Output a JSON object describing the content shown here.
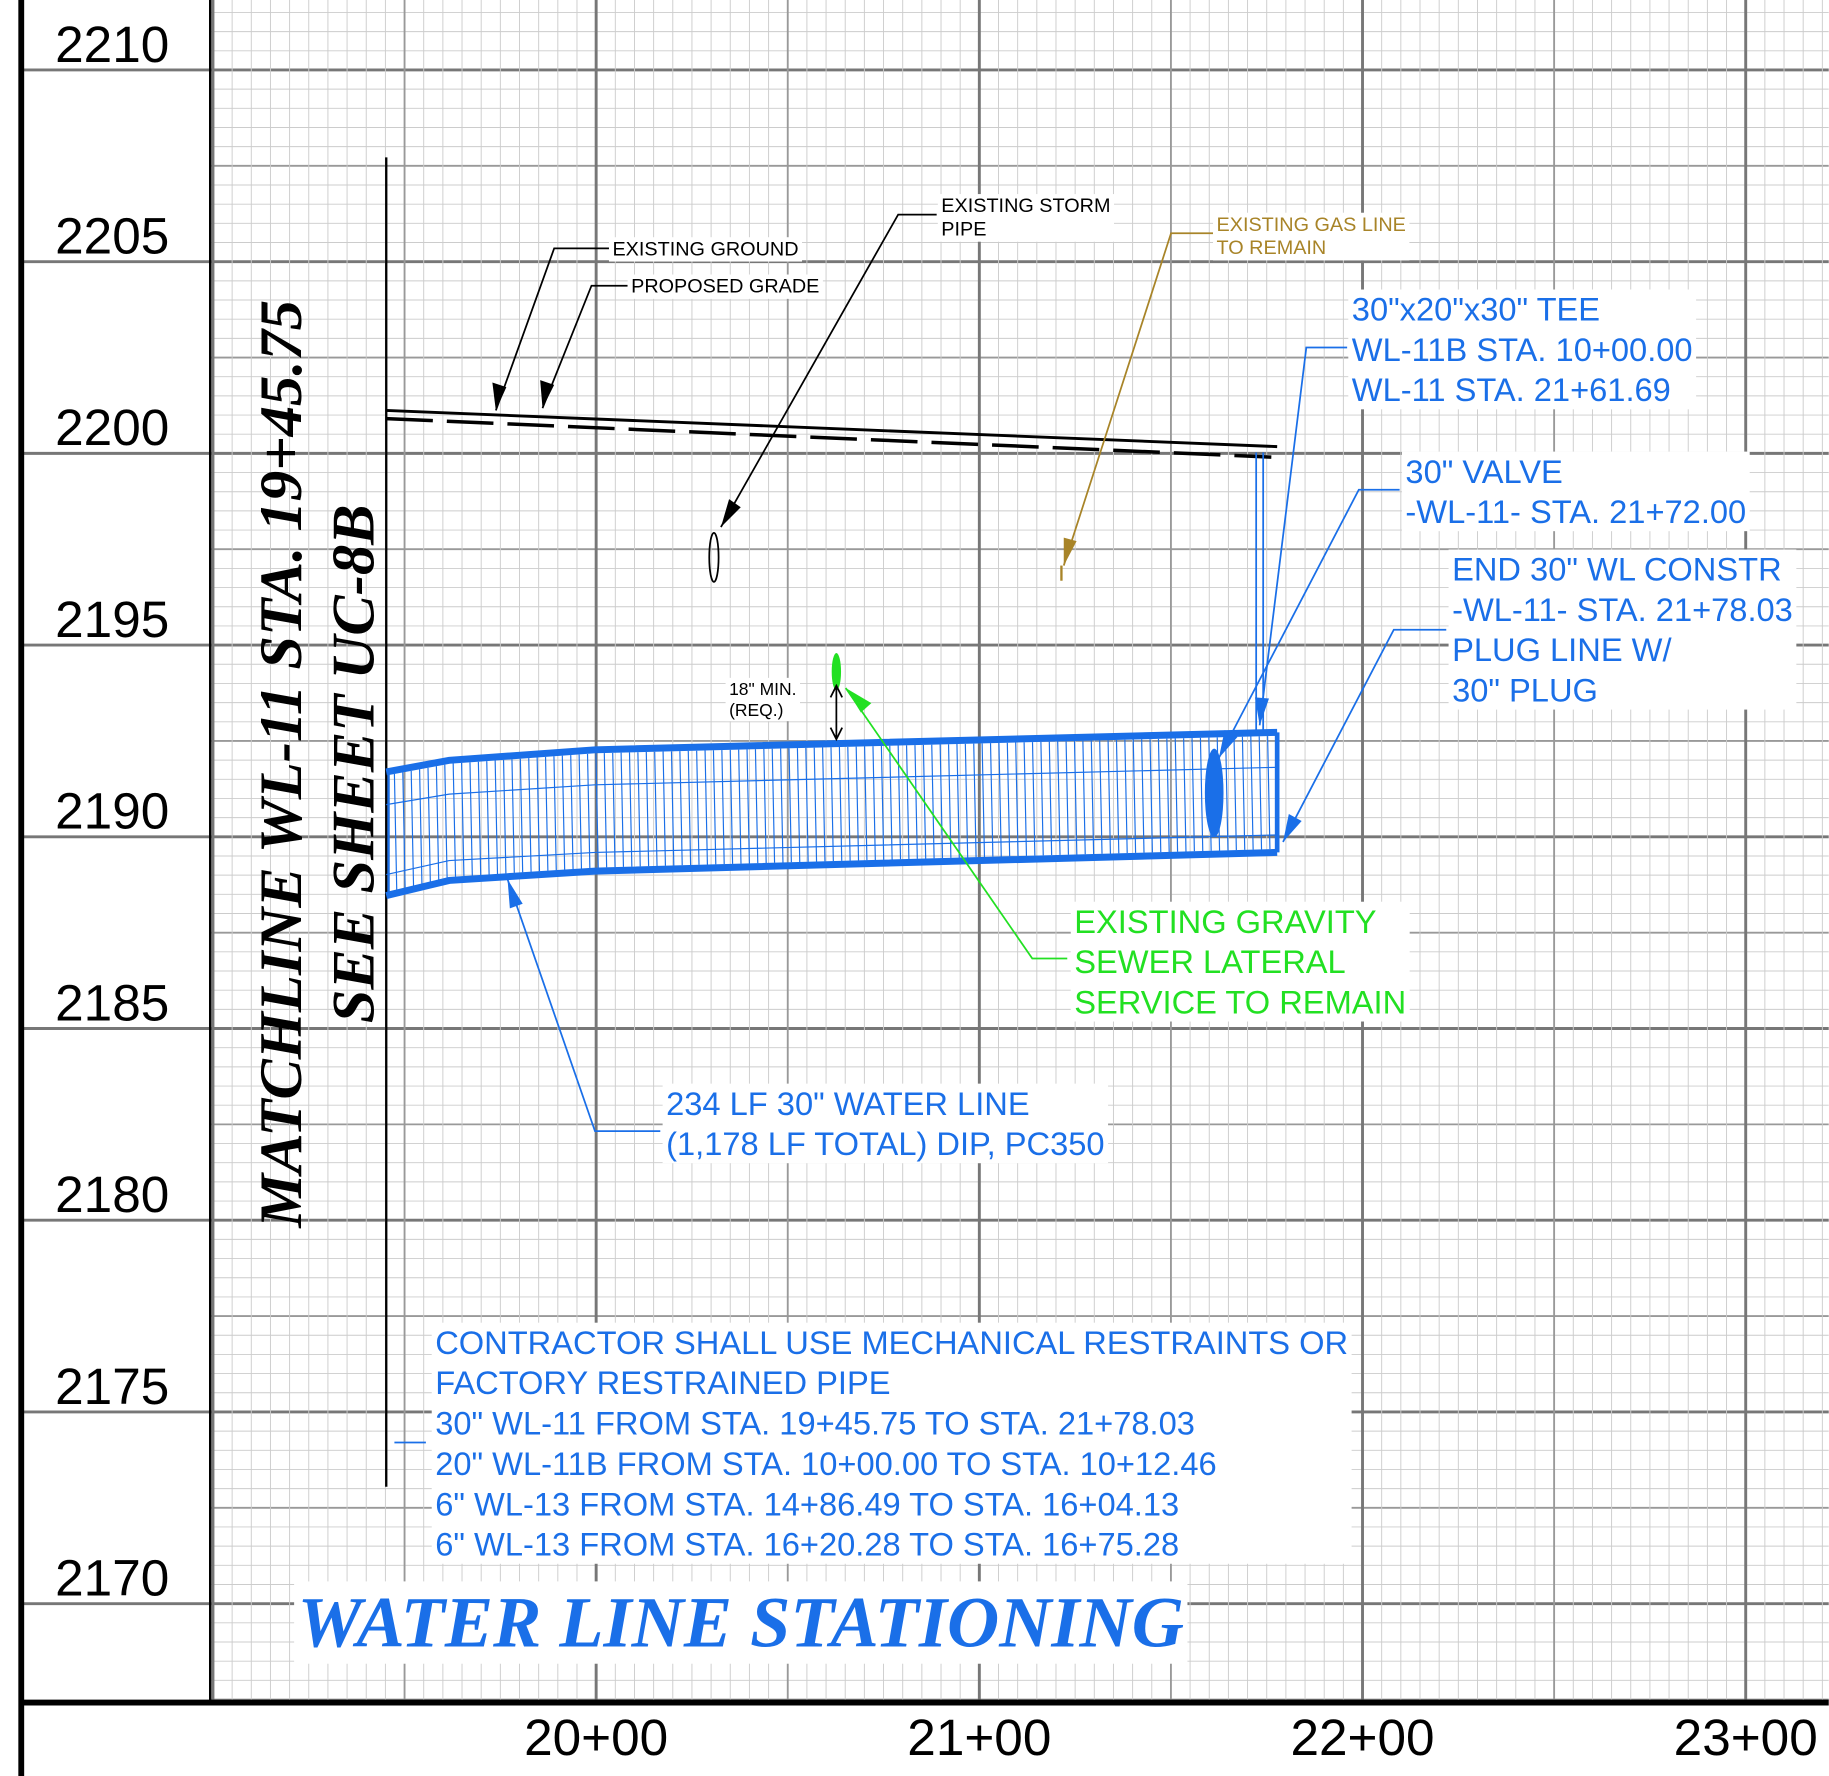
{
  "elevations": [
    "2210",
    "2205",
    "2200",
    "2195",
    "2190",
    "2185",
    "2180",
    "2175",
    "2170"
  ],
  "stations": [
    "20+00",
    "21+00",
    "22+00",
    "23+00"
  ],
  "matchline": {
    "line1": "MATCHLINE  WL-11  STA. 19+45.75",
    "line2": "SEE  SHEET  UC-8B"
  },
  "title": "WATER  LINE  STATIONING",
  "labels": {
    "existing_ground": "EXISTING GROUND",
    "proposed_grade": "PROPOSED GRADE",
    "storm_pipe": [
      "EXISTING STORM",
      "PIPE"
    ],
    "gas_line": [
      "EXISTING GAS LINE",
      "TO REMAIN"
    ],
    "tee": [
      "30\"x20\"x30\" TEE",
      "WL-11B STA. 10+00.00",
      "WL-11 STA. 21+61.69"
    ],
    "valve": [
      "30\" VALVE",
      "-WL-11- STA. 21+72.00"
    ],
    "end": [
      "END 30\" WL CONSTR",
      "-WL-11- STA. 21+78.03",
      "PLUG LINE W/",
      "30\" PLUG"
    ],
    "min_clearance": [
      "18\" MIN.",
      "(REQ.)"
    ],
    "sewer": [
      "EXISTING GRAVITY",
      "SEWER LATERAL",
      "SERVICE TO REMAIN"
    ],
    "water_line": [
      "234 LF 30\" WATER LINE",
      "(1,178 LF TOTAL) DIP, PC350"
    ],
    "restraints": [
      "CONTRACTOR SHALL USE MECHANICAL RESTRAINTS OR",
      "FACTORY RESTRAINED PIPE",
      "30\" WL-11 FROM STA. 19+45.75 TO STA. 21+78.03",
      "20\" WL-11B FROM STA. 10+00.00 TO STA. 10+12.46",
      "6\" WL-13 FROM STA. 14+86.49 TO STA. 16+04.13",
      "6\" WL-13 FROM STA. 16+20.28 TO STA. 16+75.28"
    ]
  }
}
